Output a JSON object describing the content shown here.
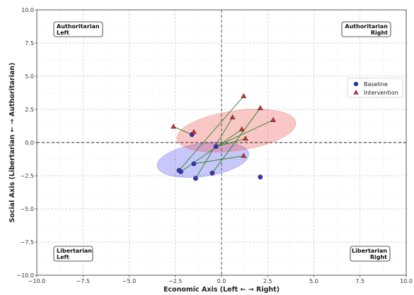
{
  "chart_data": {
    "type": "scatter",
    "xlabel": "Economic Axis (Left ← → Right)",
    "ylabel": "Social Axis (Libertarian ← → Authoritarian)",
    "xlim": [
      -10,
      10
    ],
    "ylim": [
      -10,
      10
    ],
    "xticks": [
      "−10.0",
      "−7.5",
      "−5.0",
      "−2.5",
      "0.0",
      "2.5",
      "5.0",
      "7.5",
      "10.0"
    ],
    "yticks": [
      "10.0",
      "7.5",
      "5.0",
      "2.5",
      "0.0",
      "−2.5",
      "−5.0",
      "−7.5",
      "−10.0"
    ],
    "grid": true,
    "legend_position": "right",
    "quadrant_labels": [
      {
        "line1": "Authoritarian",
        "line2": "Left",
        "align": "left"
      },
      {
        "line1": "Authoritarian",
        "line2": "Right",
        "align": "right"
      },
      {
        "line1": "Libertarian",
        "line2": "Left",
        "align": "left"
      },
      {
        "line1": "Libertarian",
        "line2": "Right",
        "align": "right"
      }
    ],
    "series": [
      {
        "name": "Baseline",
        "marker": "circle",
        "color": "#3434b8",
        "points": [
          {
            "x": -2.3,
            "y": -2.1
          },
          {
            "x": -2.2,
            "y": -2.2
          },
          {
            "x": -1.6,
            "y": 0.6
          },
          {
            "x": -1.5,
            "y": -1.6
          },
          {
            "x": -1.4,
            "y": -2.7
          },
          {
            "x": -0.5,
            "y": -2.3
          },
          {
            "x": -0.3,
            "y": -0.3
          },
          {
            "x": 2.1,
            "y": -2.6
          }
        ]
      },
      {
        "name": "Intervention",
        "marker": "triangle",
        "color": "#c83232",
        "points": [
          {
            "x": -2.6,
            "y": 1.2
          },
          {
            "x": -1.5,
            "y": 0.8
          },
          {
            "x": 0.6,
            "y": 1.9
          },
          {
            "x": 1.2,
            "y": 3.5
          },
          {
            "x": 1.1,
            "y": 1.0
          },
          {
            "x": 1.3,
            "y": 0.3
          },
          {
            "x": 1.2,
            "y": -1.0
          },
          {
            "x": 2.1,
            "y": 2.6
          },
          {
            "x": 2.8,
            "y": 1.7
          }
        ]
      }
    ],
    "connections": [
      [
        -2.3,
        -2.1,
        1.2,
        3.5
      ],
      [
        -2.2,
        -2.2,
        1.1,
        1.0
      ],
      [
        -1.6,
        0.6,
        -2.6,
        1.2
      ],
      [
        -1.5,
        -1.6,
        1.2,
        -1.0
      ],
      [
        -1.4,
        -2.7,
        0.6,
        1.9
      ],
      [
        -0.5,
        -2.3,
        2.1,
        2.6
      ],
      [
        -0.3,
        -0.3,
        2.8,
        1.7
      ],
      [
        -1.6,
        0.6,
        -1.5,
        0.8
      ],
      [
        -0.3,
        -0.3,
        1.3,
        0.3
      ]
    ],
    "ellipses": [
      {
        "series": "Baseline",
        "cx": -1.0,
        "cy": -1.3,
        "rx": 5.0,
        "ry": 2.5,
        "angle": -8,
        "color": "#4444ee"
      },
      {
        "series": "Intervention",
        "cx": 0.8,
        "cy": 0.9,
        "rx": 6.5,
        "ry": 3.0,
        "angle": -8,
        "color": "#ee4444"
      }
    ],
    "connection_color": "#2e8b2e"
  }
}
